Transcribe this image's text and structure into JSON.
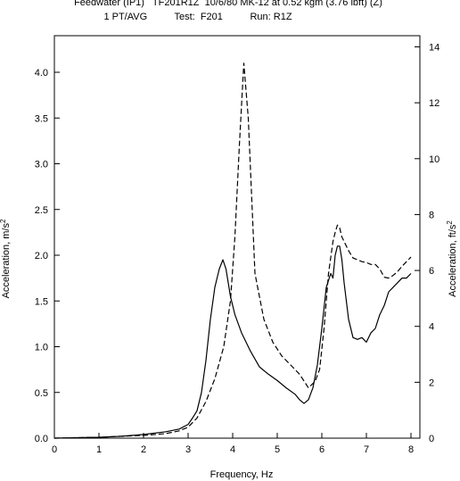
{
  "chart_data": {
    "type": "line",
    "title_line1": "Feedwater (IP1)   TF201R1Z  10/6/80 MK-12 at 0.52 kgm (3.76 lbft) (Z)",
    "title_line2": "1 PT/AVG          Test:  F201          Run: R1Z",
    "xlabel": "Frequency, Hz",
    "ylabel": "Acceleration,  m/s",
    "ylabel_sup": "2",
    "y2label": "Acceleration, ft/s",
    "y2label_sup": "2",
    "xlim": [
      0,
      8.2
    ],
    "ylim": [
      0,
      4.4
    ],
    "y2lim": [
      0,
      14.4
    ],
    "x_ticks": [
      0,
      1,
      2,
      3,
      4,
      5,
      6,
      7,
      8
    ],
    "y_ticks": [
      "0.0",
      "0.5",
      "1.0",
      "1.5",
      "2.0",
      "2.5",
      "3.0",
      "3.5",
      "4.0"
    ],
    "y2_ticks": [
      "0",
      "2",
      "4",
      "6",
      "8",
      "10",
      "12",
      "14"
    ],
    "grid": false,
    "series": [
      {
        "style": "solid",
        "color": "#000000",
        "x": [
          0,
          1.0,
          1.5,
          2.0,
          2.5,
          2.8,
          3.0,
          3.1,
          3.2,
          3.3,
          3.4,
          3.5,
          3.6,
          3.7,
          3.78,
          3.85,
          3.95,
          4.05,
          4.2,
          4.4,
          4.6,
          4.8,
          5.0,
          5.2,
          5.4,
          5.5,
          5.6,
          5.7,
          5.8,
          5.9,
          6.0,
          6.1,
          6.2,
          6.25,
          6.3,
          6.35,
          6.4,
          6.45,
          6.5,
          6.6,
          6.7,
          6.8,
          6.9,
          7.0,
          7.1,
          7.2,
          7.3,
          7.4,
          7.5,
          7.6,
          7.7,
          7.8,
          7.9,
          8.0
        ],
        "y": [
          0,
          0.01,
          0.02,
          0.04,
          0.07,
          0.1,
          0.15,
          0.22,
          0.3,
          0.5,
          0.85,
          1.3,
          1.65,
          1.85,
          1.95,
          1.85,
          1.55,
          1.35,
          1.15,
          0.95,
          0.78,
          0.7,
          0.63,
          0.55,
          0.48,
          0.42,
          0.38,
          0.42,
          0.55,
          0.8,
          1.2,
          1.65,
          1.8,
          1.75,
          2.0,
          2.1,
          2.1,
          1.95,
          1.7,
          1.3,
          1.1,
          1.08,
          1.1,
          1.05,
          1.15,
          1.2,
          1.35,
          1.45,
          1.6,
          1.65,
          1.7,
          1.75,
          1.75,
          1.8
        ]
      },
      {
        "style": "dashed",
        "color": "#000000",
        "x": [
          0,
          1.0,
          1.5,
          2.0,
          2.5,
          2.8,
          3.0,
          3.2,
          3.4,
          3.6,
          3.8,
          3.95,
          4.05,
          4.15,
          4.25,
          4.35,
          4.5,
          4.7,
          4.9,
          5.1,
          5.3,
          5.5,
          5.7,
          5.85,
          5.95,
          6.05,
          6.15,
          6.25,
          6.3,
          6.35,
          6.4,
          6.45,
          6.5,
          6.6,
          6.7,
          6.8,
          6.9,
          7.0,
          7.1,
          7.2,
          7.3,
          7.4,
          7.5,
          7.6,
          7.7,
          7.8,
          7.9,
          8.0
        ],
        "y": [
          0,
          0.01,
          0.02,
          0.03,
          0.05,
          0.08,
          0.12,
          0.22,
          0.4,
          0.65,
          1.0,
          1.5,
          2.2,
          3.2,
          4.1,
          3.5,
          1.8,
          1.3,
          1.05,
          0.9,
          0.8,
          0.7,
          0.55,
          0.62,
          0.75,
          1.2,
          1.8,
          2.15,
          2.25,
          2.33,
          2.3,
          2.2,
          2.15,
          2.05,
          1.97,
          1.95,
          1.93,
          1.92,
          1.9,
          1.9,
          1.85,
          1.76,
          1.75,
          1.78,
          1.82,
          1.88,
          1.93,
          1.98
        ]
      }
    ]
  }
}
